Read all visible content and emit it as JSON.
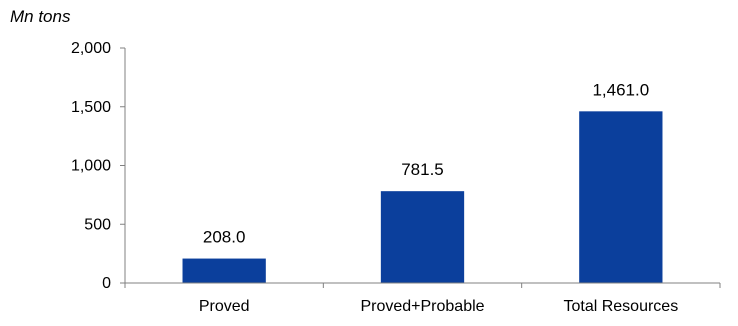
{
  "chart_data": {
    "type": "bar",
    "ylabel": "Mn tons",
    "categories": [
      "Proved",
      "Proved+Probable",
      "Total Resources"
    ],
    "values": [
      208.0,
      781.5,
      1461.0
    ],
    "value_labels": [
      "208.0",
      "781.5",
      "1,461.0"
    ],
    "ylim": [
      0,
      2000
    ],
    "yticks": [
      0,
      500,
      1000,
      1500,
      2000
    ],
    "ytick_labels": [
      "0",
      "500",
      "1,000",
      "1,500",
      "2,000"
    ],
    "grid": false,
    "legend": "none",
    "bar_color": "#0B3F9C"
  }
}
